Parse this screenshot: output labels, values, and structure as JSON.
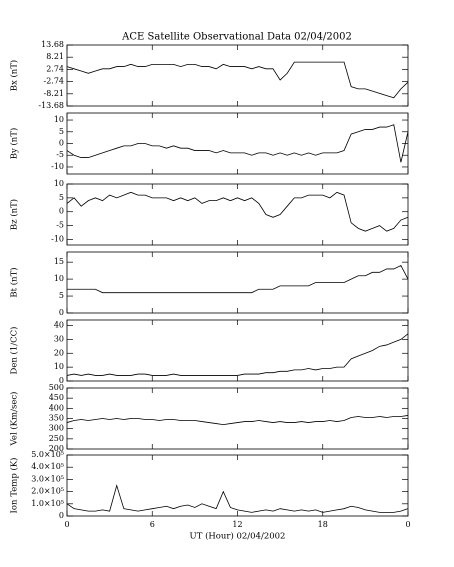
{
  "chart_data": [
    {
      "type": "line",
      "title": "ACE Satellite Observational Data   02/04/2002",
      "ylabel": "Bx (nT)",
      "x": [
        0,
        0.5,
        1,
        1.5,
        2,
        2.5,
        3,
        3.5,
        4,
        4.5,
        5,
        5.5,
        6,
        6.5,
        7,
        7.5,
        8,
        8.5,
        9,
        9.5,
        10,
        10.5,
        11,
        11.5,
        12,
        12.5,
        13,
        13.5,
        14,
        14.5,
        15,
        15.5,
        16,
        16.5,
        17,
        17.5,
        18,
        18.5,
        19,
        19.5,
        20,
        20.5,
        21,
        21.5,
        22,
        22.5,
        23,
        23.5,
        24
      ],
      "series": [
        {
          "color": "#000000",
          "values": [
            4,
            3,
            2,
            1,
            2,
            3,
            3,
            4,
            4,
            5,
            4,
            4,
            5,
            5,
            5,
            5,
            4,
            5,
            5,
            4,
            4,
            3,
            5,
            4,
            4,
            4,
            3,
            4,
            3,
            3,
            -2,
            1,
            6,
            6,
            6,
            6,
            6,
            6,
            6,
            6,
            -5,
            -6,
            -6,
            -7,
            -8,
            -9,
            -10,
            -6,
            -3
          ]
        }
      ],
      "ylim": [
        -13.68,
        13.68
      ],
      "yticks": [
        -13.68,
        -8.21,
        -2.74,
        2.74,
        8.21,
        13.68
      ]
    },
    {
      "type": "line",
      "ylabel": "By (nT)",
      "x": [
        0,
        0.5,
        1,
        1.5,
        2,
        2.5,
        3,
        3.5,
        4,
        4.5,
        5,
        5.5,
        6,
        6.5,
        7,
        7.5,
        8,
        8.5,
        9,
        9.5,
        10,
        10.5,
        11,
        11.5,
        12,
        12.5,
        13,
        13.5,
        14,
        14.5,
        15,
        15.5,
        16,
        16.5,
        17,
        17.5,
        18,
        18.5,
        19,
        19.5,
        20,
        20.5,
        21,
        21.5,
        22,
        22.5,
        23,
        23.5,
        24
      ],
      "series": [
        {
          "color": "#000000",
          "values": [
            -3,
            -5,
            -6,
            -6,
            -5,
            -4,
            -3,
            -2,
            -1,
            -1,
            0,
            0,
            -1,
            -1,
            -2,
            -1,
            -2,
            -2,
            -3,
            -3,
            -3,
            -4,
            -3,
            -4,
            -4,
            -4,
            -5,
            -4,
            -4,
            -5,
            -4,
            -5,
            -4,
            -5,
            -4,
            -5,
            -4,
            -4,
            -4,
            -3,
            4,
            5,
            6,
            6,
            7,
            7,
            8,
            -8,
            5
          ]
        }
      ],
      "ylim": [
        -13,
        13
      ],
      "yticks": [
        -10,
        -5,
        0,
        5,
        10
      ]
    },
    {
      "type": "line",
      "ylabel": "Bz (nT)",
      "x": [
        0,
        0.5,
        1,
        1.5,
        2,
        2.5,
        3,
        3.5,
        4,
        4.5,
        5,
        5.5,
        6,
        6.5,
        7,
        7.5,
        8,
        8.5,
        9,
        9.5,
        10,
        10.5,
        11,
        11.5,
        12,
        12.5,
        13,
        13.5,
        14,
        14.5,
        15,
        15.5,
        16,
        16.5,
        17,
        17.5,
        18,
        18.5,
        19,
        19.5,
        20,
        20.5,
        21,
        21.5,
        22,
        22.5,
        23,
        23.5,
        24
      ],
      "series": [
        {
          "color": "#000000",
          "values": [
            3,
            5,
            2,
            4,
            5,
            4,
            6,
            5,
            6,
            7,
            6,
            6,
            5,
            5,
            5,
            4,
            5,
            4,
            5,
            3,
            4,
            4,
            5,
            4,
            5,
            4,
            5,
            3,
            -1,
            -2,
            -1,
            2,
            5,
            5,
            6,
            6,
            6,
            5,
            7,
            6,
            -4,
            -6,
            -7,
            -6,
            -5,
            -7,
            -6,
            -3,
            -2
          ]
        }
      ],
      "ylim": [
        -12,
        10
      ],
      "yticks": [
        -10,
        -5,
        0,
        5,
        10
      ]
    },
    {
      "type": "line",
      "ylabel": "Bt (nT)",
      "x": [
        0,
        0.5,
        1,
        1.5,
        2,
        2.5,
        3,
        3.5,
        4,
        4.5,
        5,
        5.5,
        6,
        6.5,
        7,
        7.5,
        8,
        8.5,
        9,
        9.5,
        10,
        10.5,
        11,
        11.5,
        12,
        12.5,
        13,
        13.5,
        14,
        14.5,
        15,
        15.5,
        16,
        16.5,
        17,
        17.5,
        18,
        18.5,
        19,
        19.5,
        20,
        20.5,
        21,
        21.5,
        22,
        22.5,
        23,
        23.5,
        24
      ],
      "series": [
        {
          "color": "#000000",
          "values": [
            7,
            7,
            7,
            7,
            7,
            6,
            6,
            6,
            6,
            6,
            6,
            6,
            6,
            6,
            6,
            6,
            6,
            6,
            6,
            6,
            6,
            6,
            6,
            6,
            6,
            6,
            6,
            7,
            7,
            7,
            8,
            8,
            8,
            8,
            8,
            9,
            9,
            9,
            9,
            9,
            10,
            11,
            11,
            12,
            12,
            13,
            13,
            14,
            10
          ]
        }
      ],
      "ylim": [
        0,
        18
      ],
      "yticks": [
        0,
        5,
        10,
        15
      ]
    },
    {
      "type": "line",
      "ylabel": "Den (1/CC)",
      "x": [
        0,
        0.5,
        1,
        1.5,
        2,
        2.5,
        3,
        3.5,
        4,
        4.5,
        5,
        5.5,
        6,
        6.5,
        7,
        7.5,
        8,
        8.5,
        9,
        9.5,
        10,
        10.5,
        11,
        11.5,
        12,
        12.5,
        13,
        13.5,
        14,
        14.5,
        15,
        15.5,
        16,
        16.5,
        17,
        17.5,
        18,
        18.5,
        19,
        19.5,
        20,
        20.5,
        21,
        21.5,
        22,
        22.5,
        23,
        23.5,
        24
      ],
      "series": [
        {
          "color": "#000000",
          "values": [
            4,
            5,
            4,
            5,
            4,
            4,
            5,
            4,
            4,
            4,
            5,
            5,
            4,
            4,
            4,
            5,
            4,
            4,
            4,
            4,
            4,
            4,
            4,
            4,
            4,
            5,
            5,
            5,
            6,
            6,
            7,
            7,
            8,
            8,
            9,
            8,
            9,
            9,
            10,
            10,
            16,
            18,
            20,
            22,
            25,
            26,
            28,
            30,
            34
          ]
        }
      ],
      "ylim": [
        0,
        44
      ],
      "yticks": [
        0,
        10,
        20,
        30,
        40
      ]
    },
    {
      "type": "line",
      "ylabel": "Vel (Km/sec)",
      "x": [
        0,
        0.5,
        1,
        1.5,
        2,
        2.5,
        3,
        3.5,
        4,
        4.5,
        5,
        5.5,
        6,
        6.5,
        7,
        7.5,
        8,
        8.5,
        9,
        9.5,
        10,
        10.5,
        11,
        11.5,
        12,
        12.5,
        13,
        13.5,
        14,
        14.5,
        15,
        15.5,
        16,
        16.5,
        17,
        17.5,
        18,
        18.5,
        19,
        19.5,
        20,
        20.5,
        21,
        21.5,
        22,
        22.5,
        23,
        23.5,
        24
      ],
      "series": [
        {
          "color": "#000000",
          "values": [
            330,
            340,
            345,
            340,
            345,
            350,
            345,
            350,
            345,
            350,
            350,
            345,
            345,
            340,
            345,
            345,
            340,
            340,
            340,
            335,
            330,
            325,
            320,
            325,
            330,
            335,
            335,
            340,
            335,
            330,
            335,
            330,
            330,
            335,
            330,
            335,
            335,
            340,
            335,
            340,
            355,
            360,
            355,
            355,
            360,
            355,
            360,
            360,
            365
          ]
        }
      ],
      "ylim": [
        200,
        500
      ],
      "yticks": [
        200,
        250,
        300,
        350,
        400,
        450,
        500
      ]
    },
    {
      "type": "line",
      "ylabel": "Ion Temp (K)",
      "xlabel": "UT (Hour)   02/04/2002",
      "x": [
        0,
        0.5,
        1,
        1.5,
        2,
        2.5,
        3,
        3.5,
        4,
        4.5,
        5,
        5.5,
        6,
        6.5,
        7,
        7.5,
        8,
        8.5,
        9,
        9.5,
        10,
        10.5,
        11,
        11.5,
        12,
        12.5,
        13,
        13.5,
        14,
        14.5,
        15,
        15.5,
        16,
        16.5,
        17,
        17.5,
        18,
        18.5,
        19,
        19.5,
        20,
        20.5,
        21,
        21.5,
        22,
        22.5,
        23,
        23.5,
        24
      ],
      "series": [
        {
          "color": "#000000",
          "values": [
            100000,
            60000,
            50000,
            40000,
            40000,
            50000,
            40000,
            250000,
            60000,
            50000,
            40000,
            50000,
            60000,
            70000,
            80000,
            60000,
            80000,
            90000,
            70000,
            100000,
            80000,
            60000,
            200000,
            70000,
            50000,
            40000,
            30000,
            40000,
            50000,
            40000,
            60000,
            50000,
            40000,
            50000,
            40000,
            50000,
            30000,
            40000,
            50000,
            60000,
            80000,
            70000,
            50000,
            40000,
            30000,
            30000,
            30000,
            40000,
            60000
          ]
        }
      ],
      "ylim": [
        0,
        500000
      ],
      "yticks": [
        0,
        {
          "value": 100000,
          "label": "1.0×10⁵"
        },
        {
          "value": 200000,
          "label": "2.0×10⁵"
        },
        {
          "value": 300000,
          "label": "3.0×10⁵"
        },
        {
          "value": 400000,
          "label": "4.0×10⁵"
        },
        {
          "value": 500000,
          "label": "5.0×10⁵"
        }
      ],
      "xlim": [
        0,
        24
      ],
      "xticks": [
        0,
        6,
        12,
        18,
        {
          "value": 24,
          "label": "0"
        }
      ]
    }
  ]
}
